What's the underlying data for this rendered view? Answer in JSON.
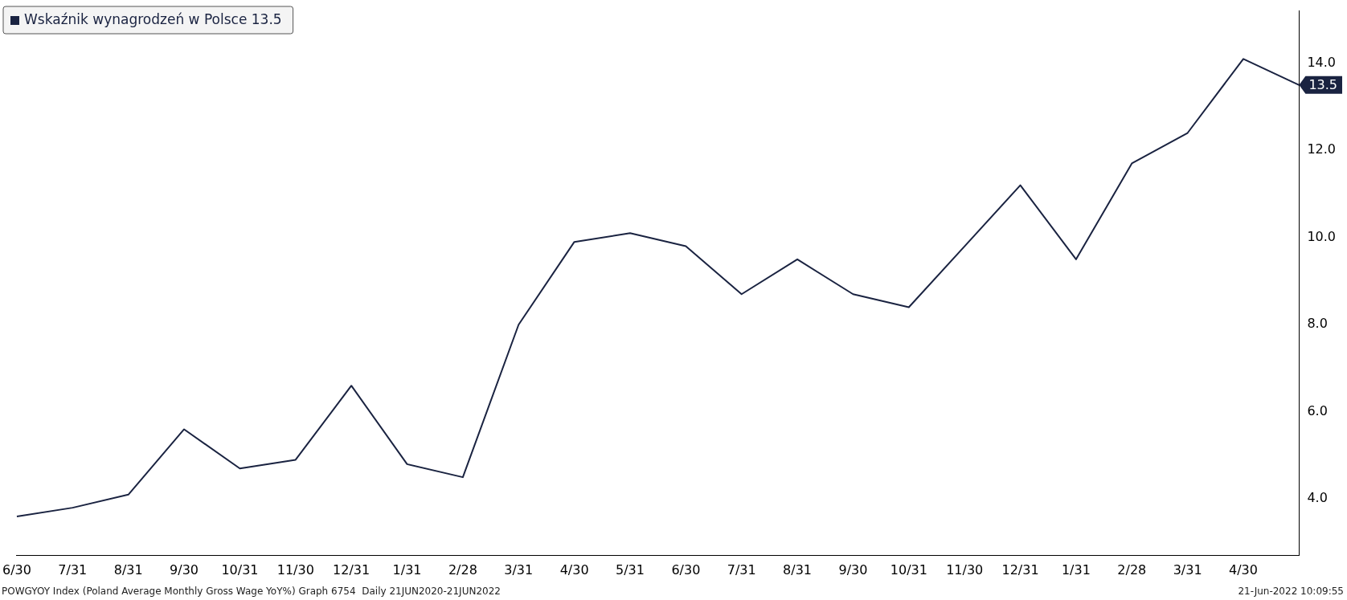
{
  "chart_data": {
    "type": "line",
    "categories": [
      "6/30",
      "7/31",
      "8/31",
      "9/30",
      "10/31",
      "11/30",
      "12/31",
      "1/31",
      "2/28",
      "3/31",
      "4/30",
      "5/31",
      "6/30",
      "7/31",
      "8/31",
      "9/30",
      "10/31",
      "11/30",
      "12/31",
      "1/31",
      "2/28",
      "3/31",
      "4/30",
      null
    ],
    "series": [
      {
        "name": "Wskaźnik wynagrodzeń w Polsce 13.5",
        "color": "#1a2341",
        "values": [
          3.6,
          3.8,
          4.1,
          5.6,
          4.7,
          4.9,
          6.6,
          4.8,
          4.5,
          8.0,
          9.9,
          10.1,
          9.8,
          8.7,
          9.5,
          8.7,
          8.4,
          9.8,
          11.2,
          9.5,
          11.7,
          12.4,
          14.1,
          13.5
        ],
        "value_labels": [
          null,
          null,
          null,
          null,
          null,
          null,
          null,
          null,
          null,
          null,
          null,
          null,
          null,
          null,
          null,
          null,
          null,
          null,
          null,
          null,
          null,
          null,
          null,
          "13.5"
        ]
      }
    ],
    "ylim": [
      2.7,
      15.2
    ],
    "yticks": [
      {
        "value": 4,
        "label": "4.0"
      },
      {
        "value": 6,
        "label": "6.0"
      },
      {
        "value": 8,
        "label": "8.0"
      },
      {
        "value": 10,
        "label": "10.0"
      },
      {
        "value": 12,
        "label": "12.0"
      },
      {
        "value": 14,
        "label": "14.0"
      }
    ],
    "grid": false,
    "legend": "top left",
    "marker": "none",
    "annotations": [
      "POWGYOY Index (Poland Average Monthly Gross Wage YoY%) Graph 6754  Daily 21JUN2020-21JUN2022",
      "21-Jun-2022 10:09:55"
    ]
  }
}
